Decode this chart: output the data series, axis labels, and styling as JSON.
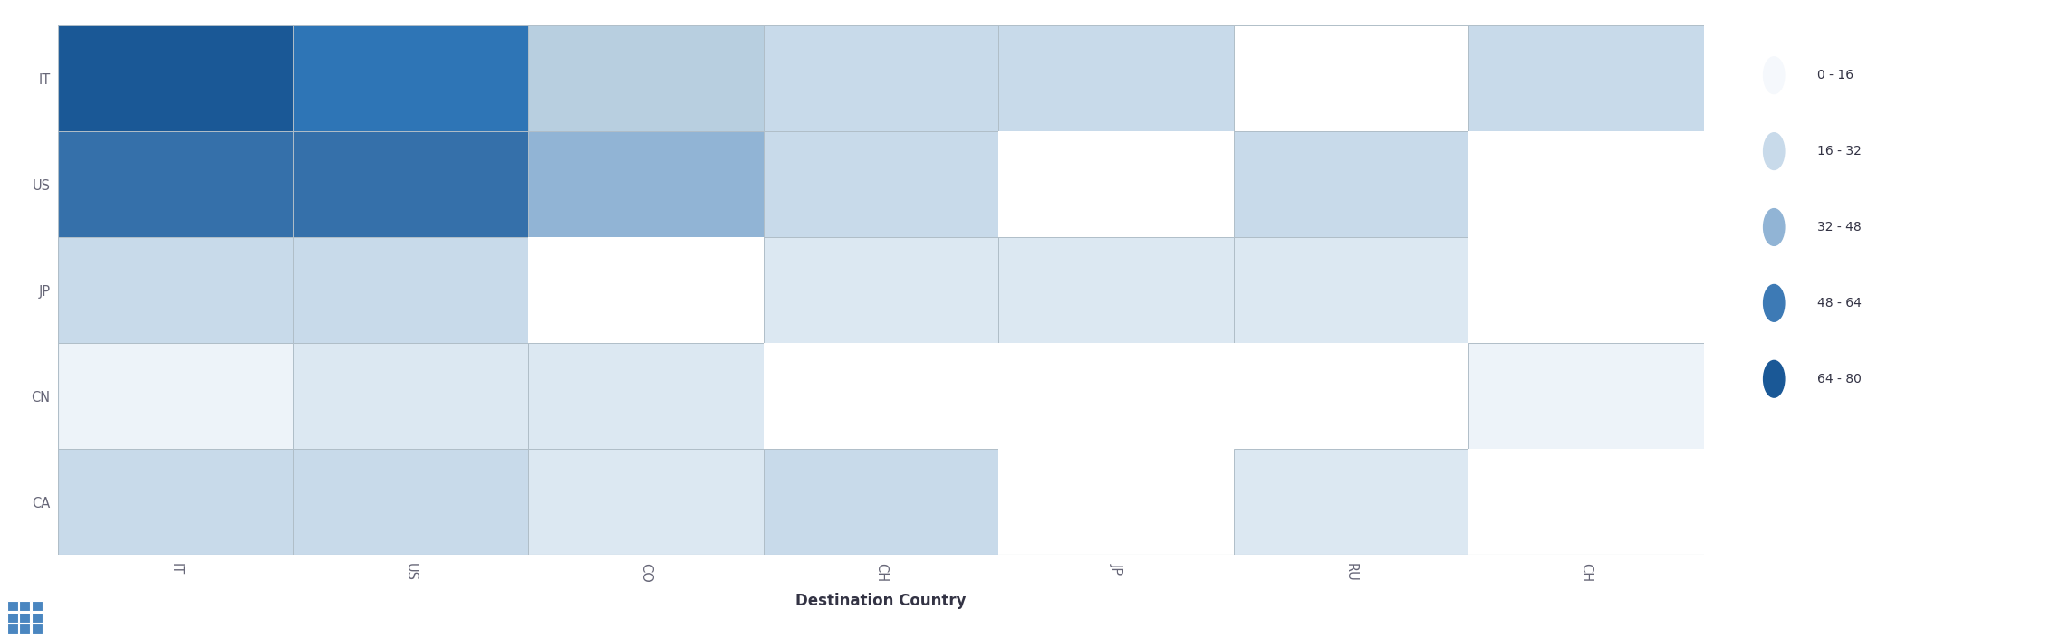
{
  "row_labels": [
    "IT",
    "US",
    "JP",
    "CN",
    "CA"
  ],
  "col_labels": [
    "IT",
    "US",
    "CO",
    "CH",
    "JP",
    "RU",
    "CH"
  ],
  "n_rows": 5,
  "n_cols": 7,
  "cell_colors": [
    [
      "#1a5896",
      "#2e75b6",
      "#b8cfe0",
      "#c8daea",
      "#c8daea",
      "#ffffff",
      "#c8daea"
    ],
    [
      "#3570aa",
      "#3570aa",
      "#91b4d5",
      "#c8daea",
      "#ffffff",
      "#c8daea",
      "#ffffff"
    ],
    [
      "#c8daea",
      "#c8daea",
      "#ffffff",
      "#dce8f2",
      "#dce8f2",
      "#dce8f2",
      "#ffffff"
    ],
    [
      "#edf3f9",
      "#dce8f2",
      "#dce8f2",
      "#ffffff",
      "#ffffff",
      "#ffffff",
      "#edf3f9"
    ],
    [
      "#c8daea",
      "#c8daea",
      "#dce8f2",
      "#c8daea",
      "#ffffff",
      "#dce8f2",
      "#ffffff"
    ]
  ],
  "has_cell": [
    [
      true,
      true,
      true,
      true,
      true,
      true,
      true
    ],
    [
      true,
      true,
      true,
      true,
      false,
      true,
      false
    ],
    [
      true,
      true,
      false,
      true,
      true,
      true,
      false
    ],
    [
      true,
      true,
      true,
      false,
      false,
      false,
      true
    ],
    [
      true,
      true,
      true,
      true,
      false,
      true,
      false
    ]
  ],
  "legend_labels": [
    "0 - 16",
    "16 - 32",
    "32 - 48",
    "48 - 64",
    "64 - 80"
  ],
  "legend_colors": [
    "#f5f8fc",
    "#c8daea",
    "#91b4d5",
    "#3d7ab5",
    "#1a5896"
  ],
  "xlabel": "Destination Country",
  "background_color": "#ffffff",
  "grid_color": "#b0bec8",
  "text_color": "#666677"
}
